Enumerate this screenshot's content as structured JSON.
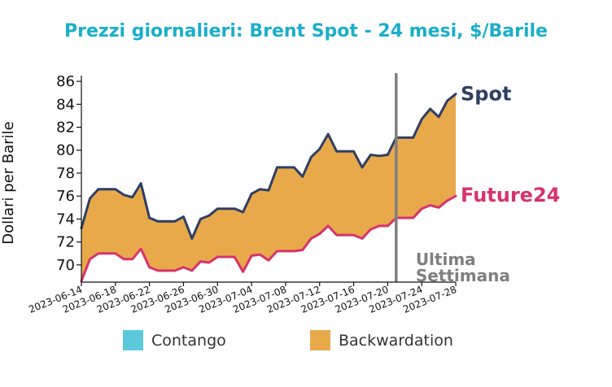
{
  "chart_data": {
    "type": "area",
    "title": "Prezzi giornalieri: Brent Spot - 24 mesi, $/Barile",
    "xlabel": "",
    "ylabel": "Dollari per Barile",
    "ylim": [
      68.5,
      86.5
    ],
    "yticks": [
      70,
      72,
      74,
      76,
      78,
      80,
      82,
      84,
      86
    ],
    "xlim": [
      "2023-06-14",
      "2023-07-28"
    ],
    "xticks": [
      "2023-06-14",
      "2023-06-18",
      "2023-06-22",
      "2023-06-26",
      "2023-06-30",
      "2023-07-04",
      "2023-07-08",
      "2023-07-12",
      "2023-07-16",
      "2023-07-20",
      "2023-07-24",
      "2023-07-28"
    ],
    "series": [
      {
        "name": "Spot",
        "color": "#2e3f63",
        "x": [
          "2023-06-14",
          "2023-06-15",
          "2023-06-16",
          "2023-06-17",
          "2023-06-18",
          "2023-06-19",
          "2023-06-20",
          "2023-06-21",
          "2023-06-22",
          "2023-06-23",
          "2023-06-24",
          "2023-06-25",
          "2023-06-26",
          "2023-06-27",
          "2023-06-28",
          "2023-06-29",
          "2023-06-30",
          "2023-07-01",
          "2023-07-02",
          "2023-07-03",
          "2023-07-04",
          "2023-07-05",
          "2023-07-06",
          "2023-07-07",
          "2023-07-08",
          "2023-07-09",
          "2023-07-10",
          "2023-07-11",
          "2023-07-12",
          "2023-07-13",
          "2023-07-14",
          "2023-07-15",
          "2023-07-16",
          "2023-07-17",
          "2023-07-18",
          "2023-07-19",
          "2023-07-20",
          "2023-07-21",
          "2023-07-22",
          "2023-07-23",
          "2023-07-24",
          "2023-07-25",
          "2023-07-26",
          "2023-07-27",
          "2023-07-28"
        ],
        "values": [
          73.2,
          75.8,
          76.6,
          76.6,
          76.6,
          76.1,
          75.9,
          77.1,
          74.1,
          73.8,
          73.8,
          73.8,
          74.2,
          72.3,
          74.0,
          74.3,
          74.9,
          74.9,
          74.9,
          74.6,
          76.2,
          76.6,
          76.5,
          78.5,
          78.5,
          78.5,
          77.7,
          79.4,
          80.1,
          81.4,
          79.9,
          79.9,
          79.9,
          78.5,
          79.6,
          79.5,
          79.6,
          81.1,
          81.1,
          81.1,
          82.7,
          83.6,
          82.9,
          84.3,
          84.9
        ]
      },
      {
        "name": "Future24",
        "color": "#d6336c",
        "x": [
          "2023-06-14",
          "2023-06-15",
          "2023-06-16",
          "2023-06-17",
          "2023-06-18",
          "2023-06-19",
          "2023-06-20",
          "2023-06-21",
          "2023-06-22",
          "2023-06-23",
          "2023-06-24",
          "2023-06-25",
          "2023-06-26",
          "2023-06-27",
          "2023-06-28",
          "2023-06-29",
          "2023-06-30",
          "2023-07-01",
          "2023-07-02",
          "2023-07-03",
          "2023-07-04",
          "2023-07-05",
          "2023-07-06",
          "2023-07-07",
          "2023-07-08",
          "2023-07-09",
          "2023-07-10",
          "2023-07-11",
          "2023-07-12",
          "2023-07-13",
          "2023-07-14",
          "2023-07-15",
          "2023-07-16",
          "2023-07-17",
          "2023-07-18",
          "2023-07-19",
          "2023-07-20",
          "2023-07-21",
          "2023-07-22",
          "2023-07-23",
          "2023-07-24",
          "2023-07-25",
          "2023-07-26",
          "2023-07-27",
          "2023-07-28"
        ],
        "values": [
          68.6,
          70.5,
          71.0,
          71.0,
          71.0,
          70.5,
          70.5,
          71.4,
          69.8,
          69.5,
          69.5,
          69.5,
          69.8,
          69.5,
          70.3,
          70.2,
          70.7,
          70.7,
          70.7,
          69.4,
          70.8,
          70.9,
          70.4,
          71.2,
          71.2,
          71.2,
          71.3,
          72.3,
          72.7,
          73.4,
          72.6,
          72.6,
          72.6,
          72.3,
          73.1,
          73.4,
          73.4,
          74.1,
          74.1,
          74.1,
          74.9,
          75.2,
          75.0,
          75.6,
          76.0
        ]
      }
    ],
    "annotations": [
      {
        "type": "vline",
        "x": "2023-07-21",
        "color": "#7f7f7f",
        "text": [
          "Ultima",
          "Settimana"
        ]
      }
    ],
    "legend": {
      "position": "bottom",
      "items": [
        {
          "label": "Contango",
          "color": "#5bc8dc"
        },
        {
          "label": "Backwardation",
          "color": "#e8a94a"
        }
      ]
    },
    "colors": {
      "title": "#1aaecb",
      "fill_backwardation": "#e8a94a",
      "fill_contango": "#5bc8dc"
    },
    "grid": false
  }
}
